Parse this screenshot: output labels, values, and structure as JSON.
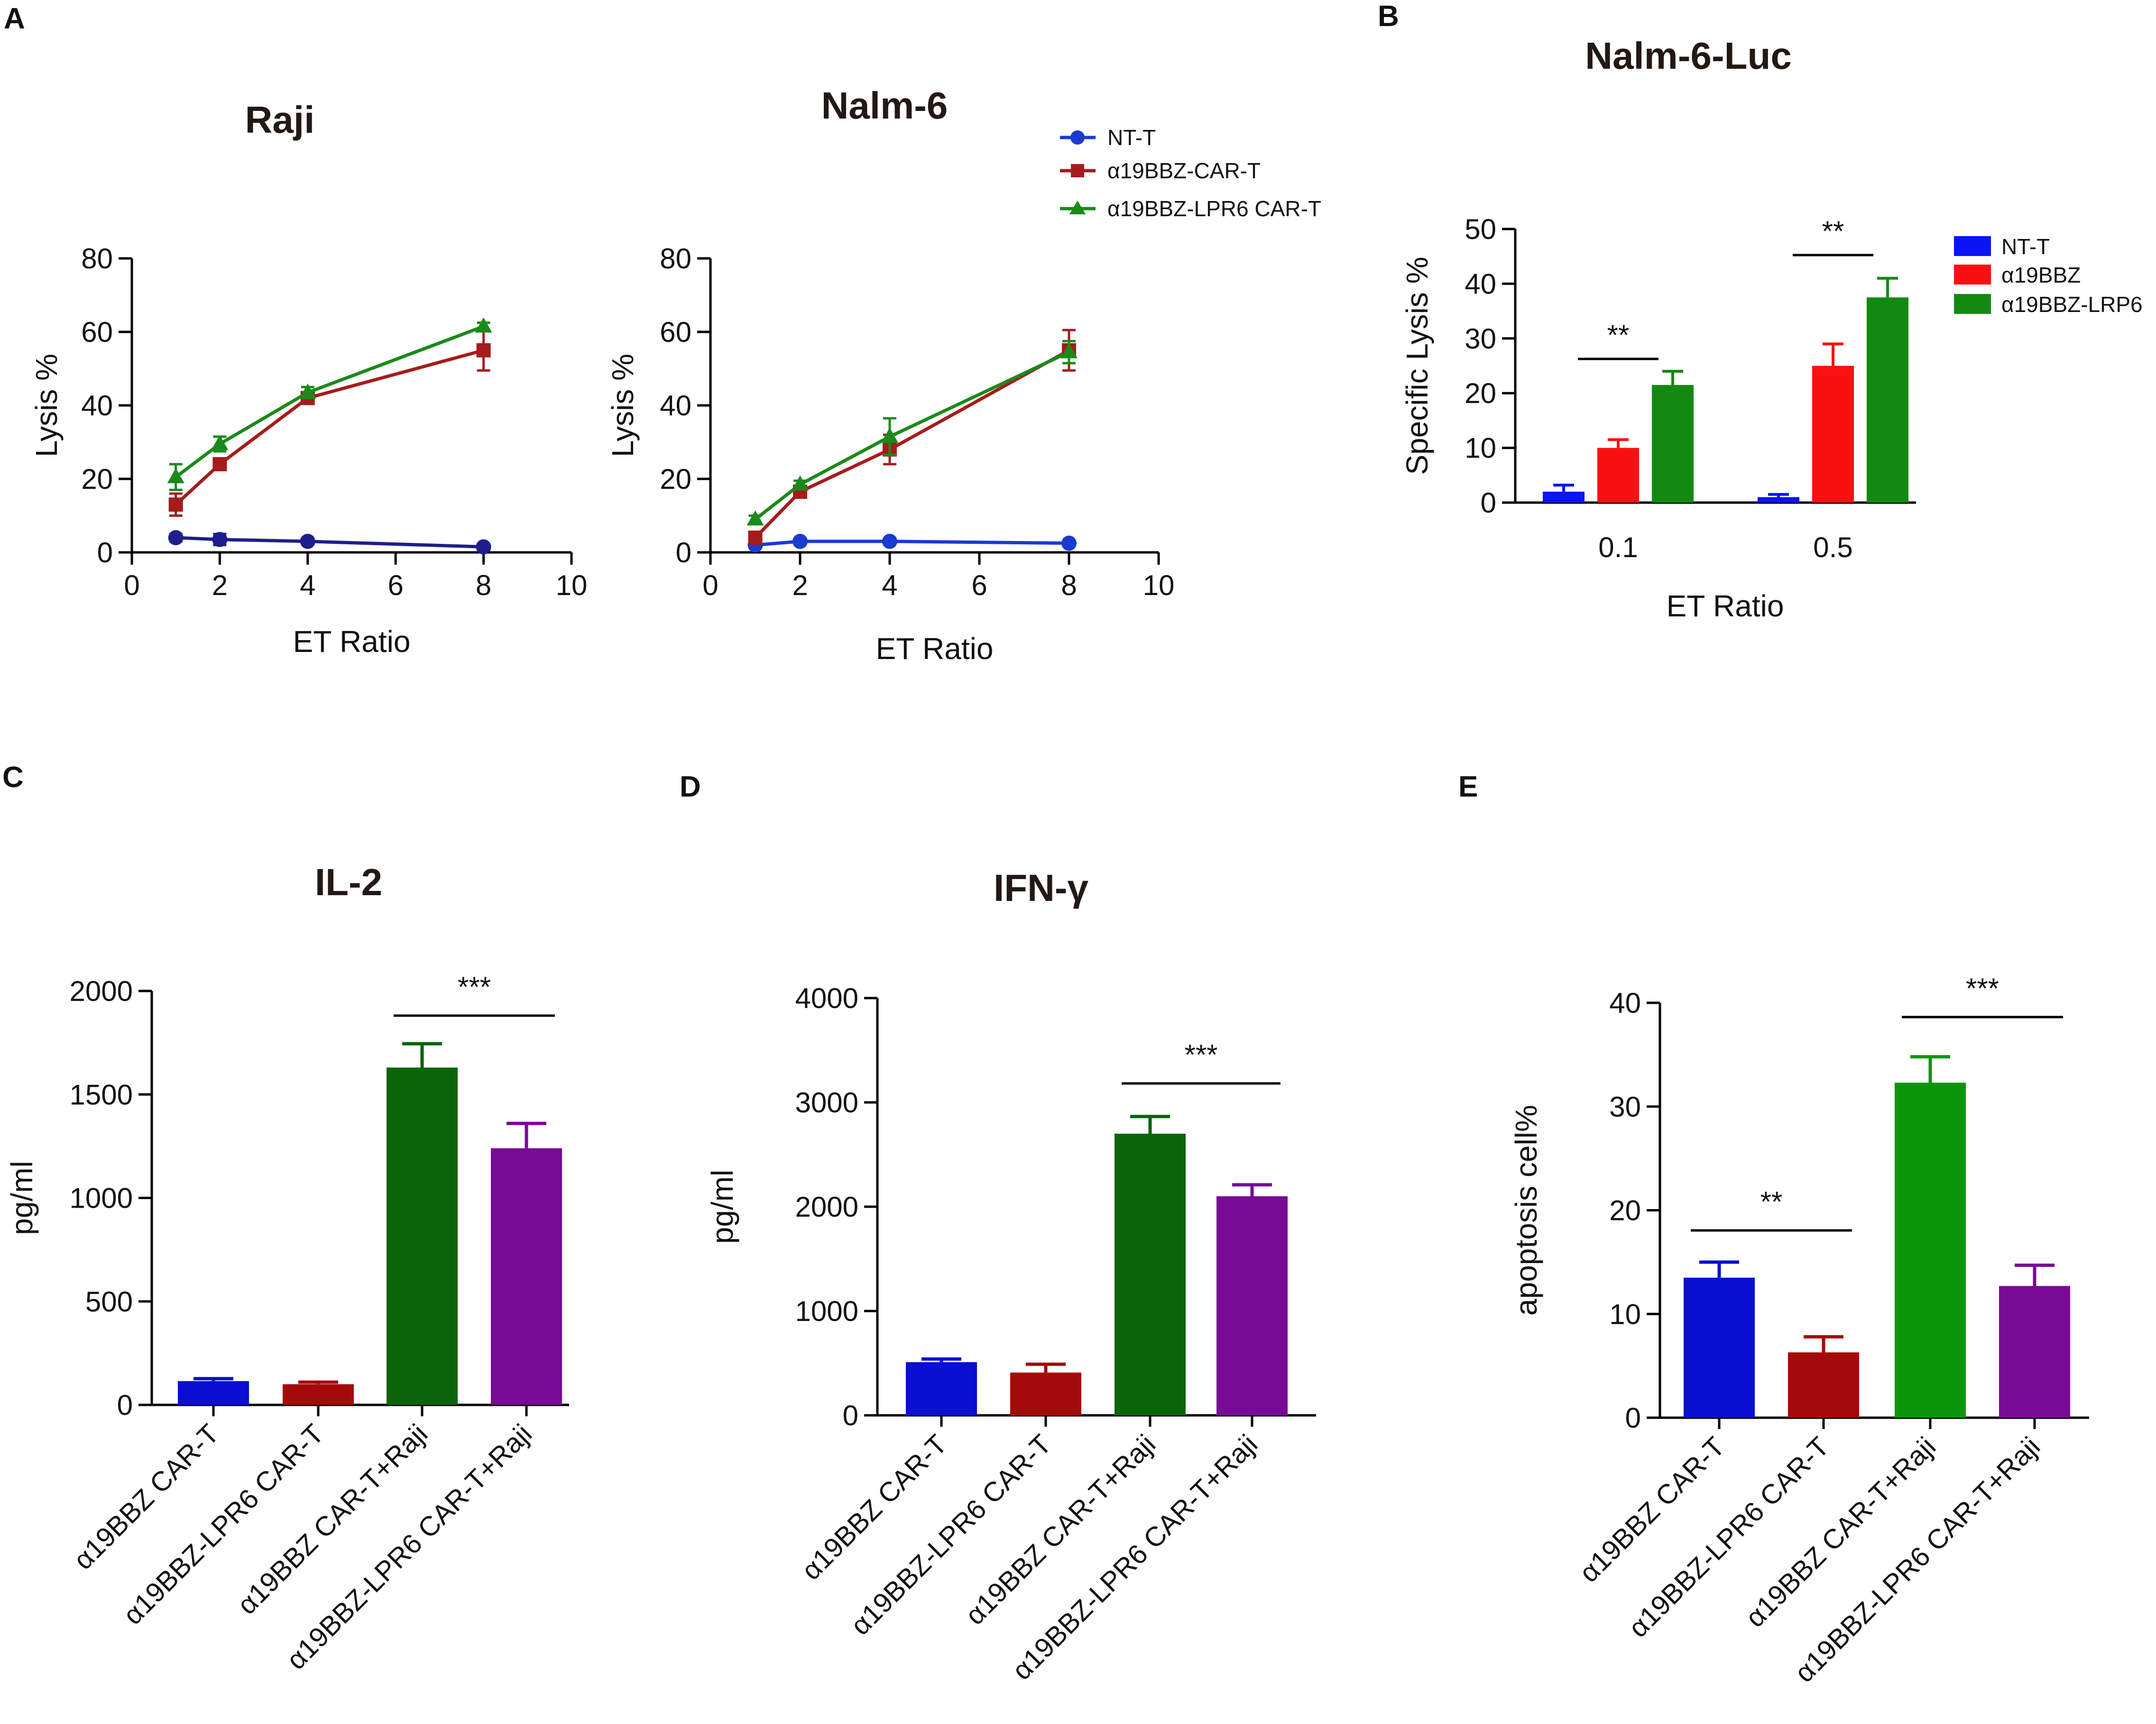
{
  "panels": {
    "A": "A",
    "B": "B",
    "C": "C",
    "D": "D",
    "E": "E"
  },
  "chart_data": [
    {
      "id": "raji",
      "type": "line",
      "title": "Raji",
      "xlabel": "ET Ratio",
      "ylabel": "Lysis %",
      "xlim": [
        0,
        10
      ],
      "ylim": [
        0,
        80
      ],
      "xticks": [
        "0",
        "2",
        "4",
        "6",
        "8",
        "10"
      ],
      "yticks": [
        "0",
        "20",
        "40",
        "60",
        "80"
      ],
      "x": [
        1,
        2,
        4,
        8
      ],
      "series": [
        {
          "name": "NT-T",
          "color": "#1e1e8c",
          "marker": "circle",
          "values": [
            4,
            3.5,
            3,
            1.5
          ],
          "errors": [
            1,
            1.5,
            0.8,
            0.8
          ]
        },
        {
          "name": "α19BBZ-CAR-T",
          "color": "#a61c1c",
          "marker": "square",
          "values": [
            13,
            24,
            42,
            55
          ],
          "errors": [
            3,
            1.5,
            1.5,
            5.5
          ]
        },
        {
          "name": "α19BBZ-LPR6 CAR-T",
          "color": "#1a8a1a",
          "marker": "triangle",
          "values": [
            20.5,
            29.5,
            43.5,
            61.5
          ],
          "errors": [
            3.5,
            2,
            1.5,
            1
          ]
        }
      ]
    },
    {
      "id": "nalm6",
      "type": "line",
      "title": "Nalm-6",
      "xlabel": "ET Ratio",
      "ylabel": "Lysis %",
      "xlim": [
        0,
        10
      ],
      "ylim": [
        0,
        80
      ],
      "xticks": [
        "0",
        "2",
        "4",
        "6",
        "8",
        "10"
      ],
      "yticks": [
        "0",
        "20",
        "40",
        "60",
        "80"
      ],
      "x": [
        1,
        2,
        4,
        8
      ],
      "series": [
        {
          "name": "NT-T",
          "color": "#1a3ad0",
          "marker": "circle",
          "values": [
            2,
            3,
            3,
            2.5
          ],
          "errors": [
            0.8,
            0.5,
            0.5,
            0.5
          ]
        },
        {
          "name": "α19BBZ-CAR-T",
          "color": "#a61c1c",
          "marker": "square",
          "values": [
            4,
            16.5,
            28,
            55
          ],
          "errors": [
            1.2,
            1.5,
            4,
            5.5
          ]
        },
        {
          "name": "α19BBZ-LPR6 CAR-T",
          "color": "#1a8a1a",
          "marker": "triangle",
          "values": [
            9,
            18.5,
            31.5,
            54.5
          ],
          "errors": [
            1,
            1,
            5,
            3
          ]
        }
      ],
      "legend": [
        "NT-T",
        "α19BBZ-CAR-T",
        "α19BBZ-LPR6 CAR-T"
      ]
    },
    {
      "id": "nalm6luc",
      "type": "bar",
      "title": "Nalm-6-Luc",
      "xlabel": "ET Ratio",
      "ylabel": "Specific Lysis %",
      "ylim": [
        0,
        50
      ],
      "yticks": [
        "0",
        "10",
        "20",
        "30",
        "40",
        "50"
      ],
      "categories": [
        "0.1",
        "0.5"
      ],
      "series": [
        {
          "name": "NT-T",
          "color": "#0a14f5",
          "values": [
            2,
            1
          ],
          "errors": [
            1.2,
            0.5
          ]
        },
        {
          "name": "α19BBZ",
          "color": "#fa1010",
          "values": [
            10,
            25
          ],
          "errors": [
            1.5,
            4
          ]
        },
        {
          "name": "α19BBZ-LRP6",
          "color": "#128a12",
          "values": [
            21.5,
            37.5
          ],
          "errors": [
            2.5,
            3.5
          ]
        }
      ],
      "significance": [
        {
          "label": "**",
          "category": "0.1"
        },
        {
          "label": "**",
          "category": "0.5"
        }
      ]
    },
    {
      "id": "il2",
      "type": "bar",
      "title": "IL-2",
      "xlabel": "",
      "ylabel": "pg/ml",
      "ylim": [
        0,
        2000
      ],
      "yticks": [
        "0",
        "500",
        "1000",
        "1500",
        "2000"
      ],
      "categories": [
        "α19BBZ CAR-T",
        "α19BBZ-LPR6 CAR-T",
        "α19BBZ CAR-T+Raji",
        "α19BBZ-LPR6 CAR-T+Raji"
      ],
      "values": [
        115,
        100,
        1630,
        1240
      ],
      "errors": [
        12,
        10,
        115,
        120
      ],
      "colors": [
        "#0a0fd0",
        "#a50a0a",
        "#0a640a",
        "#780a96"
      ],
      "significance": [
        {
          "label": "***",
          "from": 2,
          "to": 3
        }
      ]
    },
    {
      "id": "ifng",
      "type": "bar",
      "title": "IFN-γ",
      "xlabel": "",
      "ylabel": "pg/ml",
      "ylim": [
        0,
        4000
      ],
      "yticks": [
        "0",
        "1000",
        "2000",
        "3000",
        "4000"
      ],
      "categories": [
        "α19BBZ CAR-T",
        "α19BBZ-LPR6 CAR-T",
        "α19BBZ CAR-T+Raji",
        "α19BBZ-LPR6 CAR-T+Raji"
      ],
      "values": [
        510,
        410,
        2700,
        2100
      ],
      "errors": [
        30,
        80,
        165,
        110
      ],
      "colors": [
        "#0a0fd0",
        "#a50a0a",
        "#0a640a",
        "#780a96"
      ],
      "significance": [
        {
          "label": "***",
          "from": 2,
          "to": 3
        }
      ]
    },
    {
      "id": "apoptosis",
      "type": "bar",
      "title": "",
      "xlabel": "",
      "ylabel": "apoptosis cell%",
      "ylim": [
        0,
        40
      ],
      "yticks": [
        "0",
        "10",
        "20",
        "30",
        "40"
      ],
      "categories": [
        "α19BBZ CAR-T",
        "α19BBZ-LPR6 CAR-T",
        "α19BBZ CAR-T+Raji",
        "α19BBZ-LPR6 CAR-T+Raji"
      ],
      "values": [
        13.5,
        6.3,
        32.3,
        12.7
      ],
      "errors": [
        1.5,
        1.5,
        2.5,
        2
      ],
      "colors": [
        "#0a0fd0",
        "#a50a0a",
        "#0a960a",
        "#780a96"
      ],
      "significance": [
        {
          "label": "**",
          "from": 0,
          "to": 1
        },
        {
          "label": "***",
          "from": 2,
          "to": 3
        }
      ]
    }
  ]
}
